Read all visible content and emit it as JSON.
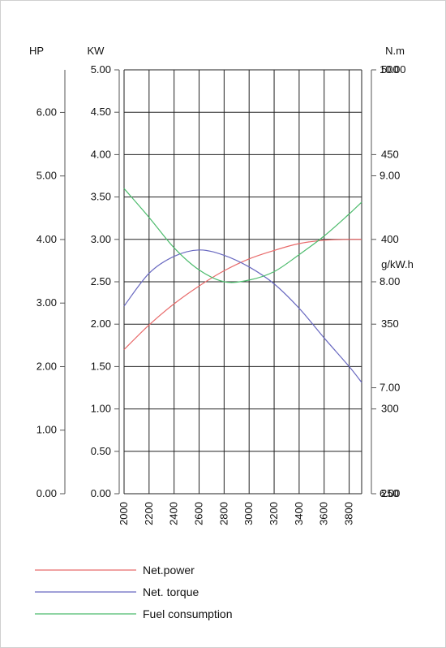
{
  "chart_data": {
    "type": "line",
    "x_axis": {
      "range": [
        2000,
        3900
      ],
      "ticks": [
        "2000",
        "2200",
        "2400",
        "2600",
        "2800",
        "3000",
        "3200",
        "3400",
        "3600",
        "3800"
      ]
    },
    "axes": {
      "hp": {
        "label": "HP",
        "range": [
          0,
          6.67
        ],
        "ticks": [
          "0.00",
          "1.00",
          "2.00",
          "3.00",
          "4.00",
          "5.00",
          "6.00"
        ],
        "tick_values": [
          0,
          1,
          2,
          3,
          4,
          5,
          6
        ]
      },
      "kw": {
        "label": "KW",
        "range": [
          0,
          5
        ],
        "ticks": [
          "0.00",
          "0.50",
          "1.00",
          "1.50",
          "2.00",
          "2.50",
          "3.00",
          "3.50",
          "4.00",
          "4.50",
          "5.00"
        ],
        "tick_values": [
          0,
          0.5,
          1,
          1.5,
          2,
          2.5,
          3,
          3.5,
          4,
          4.5,
          5
        ]
      },
      "torque": {
        "label": "N.m",
        "range": [
          6,
          10
        ],
        "ticks": [
          "6.00",
          "7.00",
          "8.00",
          "9.00",
          "10.00"
        ],
        "tick_values": [
          6,
          7,
          8,
          9,
          10
        ]
      },
      "fuel": {
        "label": "g/kW.h",
        "range": [
          250,
          500
        ],
        "ticks": [
          "250",
          "300",
          "350",
          "400",
          "450",
          "500"
        ],
        "tick_values": [
          250,
          300,
          350,
          400,
          450,
          500
        ]
      }
    },
    "grid": true,
    "series": [
      {
        "name": "Net.power",
        "axis": "kw",
        "color": "#e86a6a",
        "x": [
          2000,
          2200,
          2400,
          2600,
          2800,
          3000,
          3200,
          3400,
          3600,
          3800,
          3900
        ],
        "y": [
          1.7,
          1.99,
          2.24,
          2.45,
          2.63,
          2.77,
          2.87,
          2.95,
          2.99,
          3.0,
          3.0
        ]
      },
      {
        "name": "Net. torque",
        "axis": "torque",
        "color": "#6868c0",
        "x": [
          2000,
          2200,
          2400,
          2600,
          2800,
          3000,
          3200,
          3400,
          3600,
          3800,
          3900
        ],
        "y": [
          7.77,
          8.08,
          8.24,
          8.3,
          8.25,
          8.14,
          7.98,
          7.75,
          7.47,
          7.2,
          7.05
        ]
      },
      {
        "name": "Fuel consumption",
        "axis": "fuel",
        "color": "#4cbb6c",
        "x": [
          2000,
          2200,
          2400,
          2600,
          2800,
          3000,
          3200,
          3400,
          3600,
          3800,
          3900
        ],
        "y": [
          430,
          413,
          395,
          382,
          375,
          376,
          381,
          391,
          402,
          415,
          422
        ]
      }
    ]
  }
}
